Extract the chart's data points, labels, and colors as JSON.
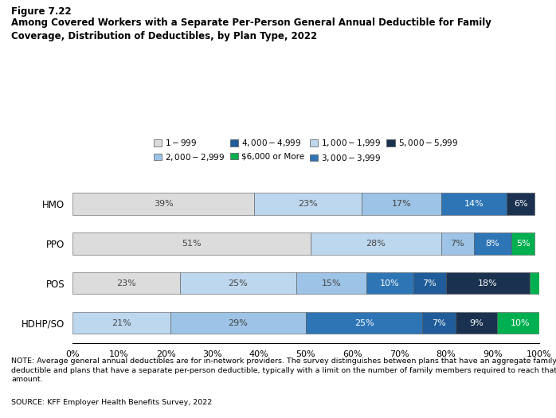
{
  "title_line1": "Figure 7.22",
  "title_line2": "Among Covered Workers with a Separate Per-Person General Annual Deductible for Family\nCoverage, Distribution of Deductibles, by Plan Type, 2022",
  "plan_types": [
    "HMO",
    "PPO",
    "POS",
    "HDHP/SO"
  ],
  "legend_labels": [
    "$1 - $999",
    "$1,000 - $1,999",
    "$2,000 - $2,999",
    "$3,000 - $3,999",
    "$4,000 - $4,999",
    "$5,000 - $5,999",
    "$6,000 or More"
  ],
  "legend_colors": [
    "#dcdcdc",
    "#bdd7ee",
    "#9dc3e6",
    "#2e75b6",
    "#1f5c99",
    "#1a3150",
    "#00b050"
  ],
  "bars": {
    "HMO": {
      "values": [
        39,
        23,
        17,
        14,
        6,
        0,
        0
      ],
      "colors": [
        "#dcdcdc",
        "#bdd7ee",
        "#9dc3e6",
        "#2e75b6",
        "#1a3150",
        "",
        ""
      ]
    },
    "PPO": {
      "values": [
        51,
        0,
        28,
        7,
        8,
        5,
        0
      ],
      "colors": [
        "#dcdcdc",
        "",
        "#bdd7ee",
        "#9dc3e6",
        "#2e75b6",
        "#00b050",
        ""
      ]
    },
    "POS": {
      "values": [
        23,
        25,
        15,
        10,
        7,
        18,
        2
      ],
      "colors": [
        "#dcdcdc",
        "#bdd7ee",
        "#9dc3e6",
        "#2e75b6",
        "#1f5c99",
        "#1a3150",
        "#00b050"
      ]
    },
    "HDHP/SO": {
      "values": [
        21,
        29,
        25,
        7,
        9,
        10,
        0
      ],
      "colors": [
        "#bdd7ee",
        "#9dc3e6",
        "#2e75b6",
        "#1f5c99",
        "#1a3150",
        "#00b050",
        ""
      ]
    }
  },
  "note": "NOTE: Average general annual deductibles are for in-network providers. The survey distinguishes between plans that have an aggregate family\ndeductible and plans that have a separate per-person deductible, typically with a limit on the number of family members required to reach that\namount.",
  "source": "SOURCE: KFF Employer Health Benefits Survey, 2022"
}
